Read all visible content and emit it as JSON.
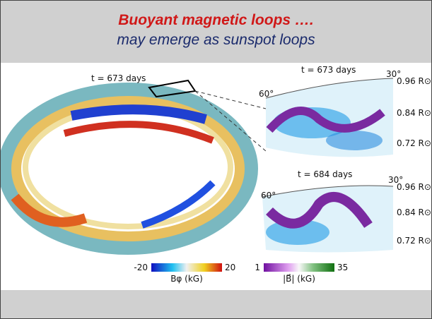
{
  "header": {
    "line1": "Buoyant magnetic loops ….",
    "line2": "may emerge as sunspot loops"
  },
  "figure": {
    "left": {
      "time_label": "t = 673 days"
    },
    "right_top": {
      "time_label": "t = 673 days",
      "angle_low": "60°",
      "angle_high": "30°",
      "radii": [
        "0.96 R⊙",
        "0.84 R⊙",
        "0.72 R⊙"
      ]
    },
    "right_bottom": {
      "time_label": "t = 684 days",
      "angle_low": "60°",
      "angle_high": "30°",
      "radii": [
        "0.96 R⊙",
        "0.84 R⊙",
        "0.72 R⊙"
      ]
    },
    "colorbar_left": {
      "min": "-20",
      "max": "20",
      "label": "Bφ (kG)"
    },
    "colorbar_right": {
      "min": "1",
      "max": "35",
      "label": "|B⃗| (kG)"
    }
  }
}
